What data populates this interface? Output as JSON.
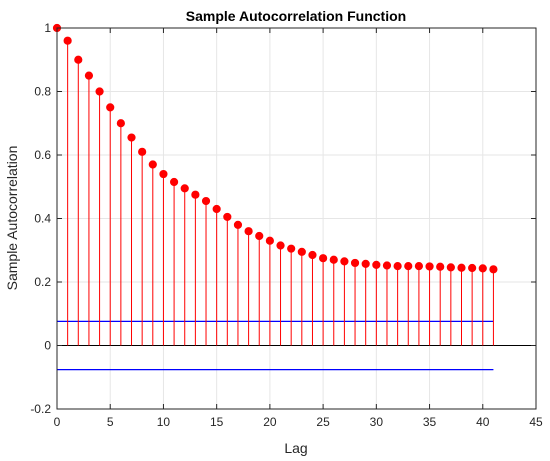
{
  "chart_data": {
    "type": "stem",
    "title": "Sample Autocorrelation Function",
    "xlabel": "Lag",
    "ylabel": "Sample Autocorrelation",
    "xlim": [
      0,
      45
    ],
    "ylim": [
      -0.2,
      1
    ],
    "xticks": [
      0,
      5,
      10,
      15,
      20,
      25,
      30,
      35,
      40,
      45
    ],
    "xtick_labels": [
      "0",
      "5",
      "10",
      "15",
      "20",
      "25",
      "30",
      "35",
      "40",
      "45"
    ],
    "yticks": [
      -0.2,
      0,
      0.2,
      0.4,
      0.6,
      0.8,
      1
    ],
    "ytick_labels": [
      "-0.2",
      "0",
      "0.2",
      "0.4",
      "0.6",
      "0.8",
      "1"
    ],
    "grid": true,
    "lags": [
      0,
      1,
      2,
      3,
      4,
      5,
      6,
      7,
      8,
      9,
      10,
      11,
      12,
      13,
      14,
      15,
      16,
      17,
      18,
      19,
      20,
      21,
      22,
      23,
      24,
      25,
      26,
      27,
      28,
      29,
      30,
      31,
      32,
      33,
      34,
      35,
      36,
      37,
      38,
      39,
      40,
      41
    ],
    "acf": [
      1.0,
      0.96,
      0.9,
      0.85,
      0.8,
      0.75,
      0.7,
      0.655,
      0.61,
      0.57,
      0.54,
      0.515,
      0.495,
      0.475,
      0.455,
      0.43,
      0.405,
      0.38,
      0.36,
      0.345,
      0.33,
      0.315,
      0.305,
      0.295,
      0.285,
      0.275,
      0.27,
      0.265,
      0.26,
      0.257,
      0.254,
      0.252,
      0.25,
      0.25,
      0.25,
      0.249,
      0.248,
      0.246,
      0.245,
      0.244,
      0.243,
      0.24
    ],
    "confidence_bounds": [
      0.076,
      -0.076
    ],
    "colors": {
      "stem": "#ff0000",
      "marker": "#ff0000",
      "bounds": "#0000ff",
      "zero_line": "#000000",
      "grid": "#e6e6e6",
      "axes": "#262626"
    }
  }
}
